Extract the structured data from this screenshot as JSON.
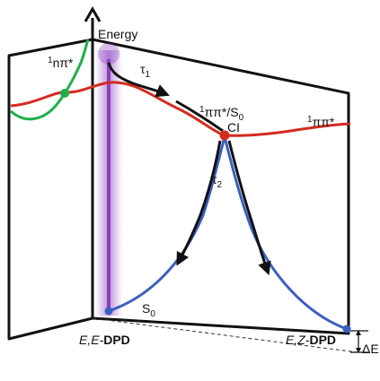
{
  "diagram": {
    "axis": {
      "energy_label": "Energy"
    },
    "states": {
      "npi_label_sup": "1",
      "npi_label_main": "nπ*",
      "pipi_ci_sup": "1",
      "pipi_ci_main": "ππ*/S",
      "pipi_ci_sub": "0",
      "ci_label": "CI",
      "pipi_right_sup": "1",
      "pipi_right_main": "ππ*",
      "s0_main": "S",
      "s0_sub": "0"
    },
    "times": {
      "tau1_main": "τ",
      "tau1_sub": "1",
      "tau2_main": "τ",
      "tau2_sub": "2"
    },
    "molecules": {
      "left_prefix": "E,E-",
      "left_name": "DPD",
      "right_prefix": "E,Z-",
      "right_name": "DPD"
    },
    "delta_label": "ΔE",
    "colors": {
      "pipi_curve": "#d42b1f",
      "npi_curve": "#1fb04c",
      "s0_curve": "#3a5fbf",
      "excitation": "#8b3fbf",
      "path_arrows": "#111111",
      "ci_point": "#d42b1f",
      "crossing_point": "#1fb04c",
      "minimum_point": "#3a5fbf"
    }
  }
}
